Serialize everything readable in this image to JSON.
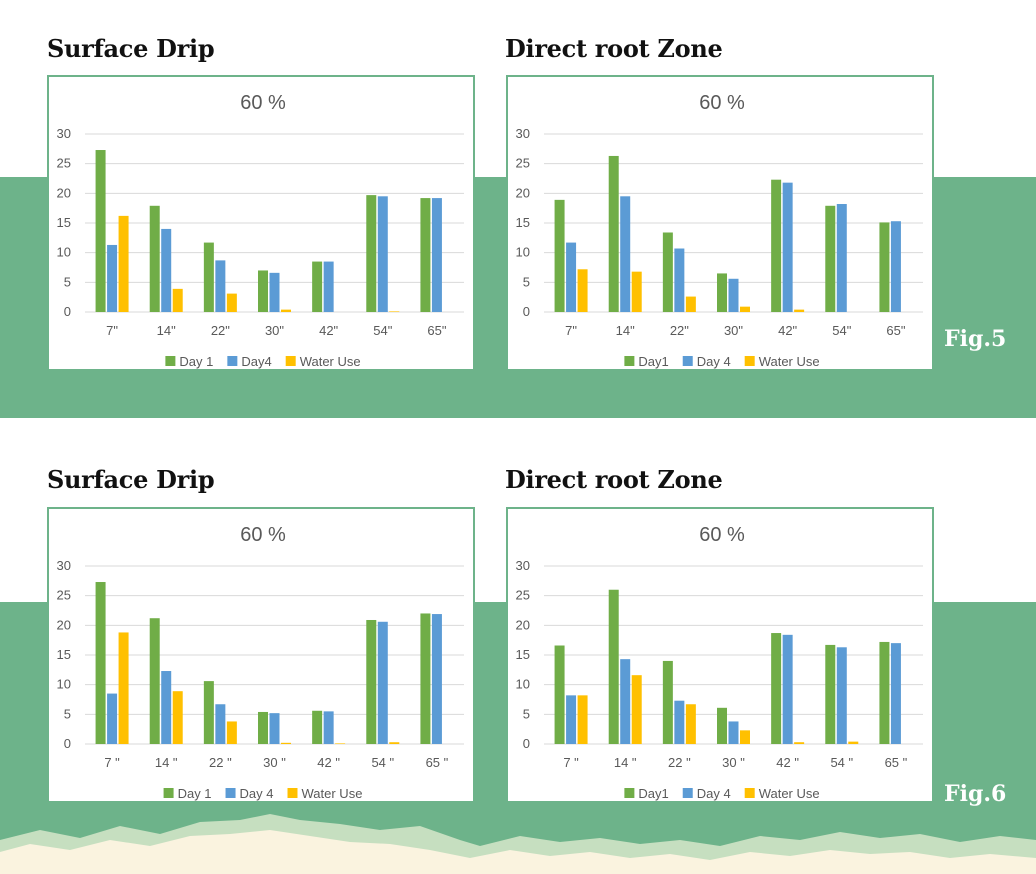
{
  "colors": {
    "band": "#6db38a",
    "border": "#6db38a",
    "series": [
      "#70ad47",
      "#5b9bd5",
      "#ffc000"
    ],
    "grid": "#d9d9d9",
    "text": "#595959"
  },
  "figures": [
    {
      "label": "Fig.5",
      "left_title": "Surface Drip",
      "right_title": "Direct root Zone"
    },
    {
      "label": "Fig.6",
      "left_title": "Surface Drip",
      "right_title": "Direct root Zone"
    }
  ],
  "chart_data": [
    {
      "type": "bar",
      "title": "60 %",
      "categories": [
        "7\"",
        "14\"",
        "22\"",
        "30\"",
        "42\"",
        "54\"",
        "65\""
      ],
      "ylim": [
        0,
        30
      ],
      "yticks": [
        0,
        5,
        10,
        15,
        20,
        25,
        30
      ],
      "grid": true,
      "legend": "bottom",
      "series": [
        {
          "name": "Day 1",
          "values": [
            27.3,
            17.9,
            11.7,
            7.0,
            8.5,
            19.7,
            19.2
          ]
        },
        {
          "name": "Day4",
          "values": [
            11.3,
            14.0,
            8.7,
            6.6,
            8.5,
            19.5,
            19.2
          ]
        },
        {
          "name": "Water Use",
          "values": [
            16.2,
            3.9,
            3.1,
            0.4,
            0,
            0.1,
            0
          ]
        }
      ]
    },
    {
      "type": "bar",
      "title": "60 %",
      "categories": [
        "7\"",
        "14\"",
        "22\"",
        "30\"",
        "42\"",
        "54\"",
        "65\""
      ],
      "ylim": [
        0,
        30
      ],
      "yticks": [
        0,
        5,
        10,
        15,
        20,
        25,
        30
      ],
      "grid": true,
      "legend": "bottom",
      "series": [
        {
          "name": "Day1",
          "values": [
            18.9,
            26.3,
            13.4,
            6.5,
            22.3,
            17.9,
            15.1
          ]
        },
        {
          "name": "Day 4",
          "values": [
            11.7,
            19.5,
            10.7,
            5.6,
            21.8,
            18.2,
            15.3
          ]
        },
        {
          "name": "Water Use",
          "values": [
            7.2,
            6.8,
            2.6,
            0.9,
            0.4,
            0,
            0
          ]
        }
      ]
    },
    {
      "type": "bar",
      "title": "60 %",
      "categories": [
        "7 \"",
        "14 \"",
        "22 \"",
        "30 \"",
        "42 \"",
        "54 \"",
        "65 \""
      ],
      "ylim": [
        0,
        30
      ],
      "yticks": [
        0,
        5,
        10,
        15,
        20,
        25,
        30
      ],
      "grid": true,
      "legend": "bottom",
      "series": [
        {
          "name": "Day 1",
          "values": [
            27.3,
            21.2,
            10.6,
            5.4,
            5.6,
            20.9,
            22.0
          ]
        },
        {
          "name": "Day 4",
          "values": [
            8.5,
            12.3,
            6.7,
            5.2,
            5.5,
            20.6,
            21.9
          ]
        },
        {
          "name": "Water Use",
          "values": [
            18.8,
            8.9,
            3.8,
            0.2,
            0.1,
            0.3,
            0
          ]
        }
      ]
    },
    {
      "type": "bar",
      "title": "60 %",
      "categories": [
        "7 \"",
        "14 \"",
        "22 \"",
        "30 \"",
        "42 \"",
        "54 \"",
        "65 \""
      ],
      "ylim": [
        0,
        30
      ],
      "yticks": [
        0,
        5,
        10,
        15,
        20,
        25,
        30
      ],
      "grid": true,
      "legend": "bottom",
      "series": [
        {
          "name": "Day1",
          "values": [
            16.6,
            26.0,
            14.0,
            6.1,
            18.7,
            16.7,
            17.2
          ]
        },
        {
          "name": "Day 4",
          "values": [
            8.2,
            14.3,
            7.3,
            3.8,
            18.4,
            16.3,
            17.0
          ]
        },
        {
          "name": "Water Use",
          "values": [
            8.2,
            11.6,
            6.7,
            2.3,
            0.3,
            0.4,
            0
          ]
        }
      ]
    }
  ]
}
